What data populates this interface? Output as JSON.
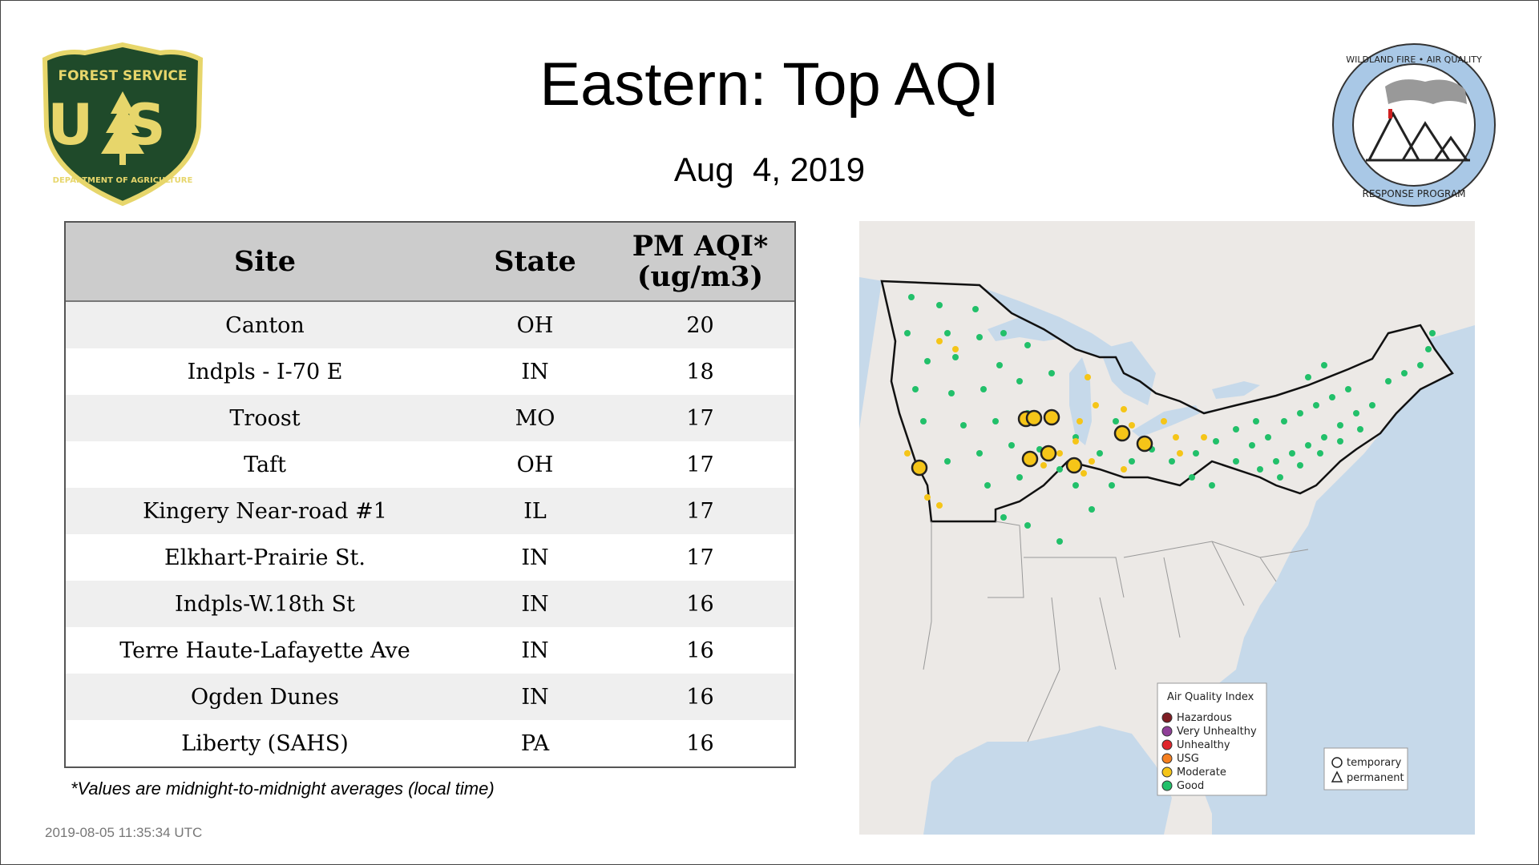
{
  "header": {
    "title": "Eastern: Top AQI",
    "date": "Aug  4, 2019"
  },
  "logos": {
    "forest_service": {
      "top_text": "FOREST SERVICE",
      "letters": "US",
      "bottom_text": "DEPARTMENT OF AGRICULTURE",
      "colors": {
        "green": "#1f4a2a",
        "gold": "#e7d66b"
      }
    },
    "wildland_fire": {
      "top_text": "WILDLAND FIRE • AIR QUALITY",
      "bottom_text": "RESPONSE PROGRAM",
      "colors": {
        "ring": "#a9c8e6"
      }
    }
  },
  "table": {
    "headers": {
      "site": "Site",
      "state": "State",
      "aqi_line1": "PM AQI*",
      "aqi_line2": "(ug/m3)"
    },
    "rows": [
      {
        "site": "Canton",
        "state": "OH",
        "aqi": "20"
      },
      {
        "site": "Indpls - I-70 E",
        "state": "IN",
        "aqi": "18"
      },
      {
        "site": "Troost",
        "state": "MO",
        "aqi": "17"
      },
      {
        "site": "Taft",
        "state": "OH",
        "aqi": "17"
      },
      {
        "site": "Kingery Near-road #1",
        "state": "IL",
        "aqi": "17"
      },
      {
        "site": "Elkhart-Prairie St.",
        "state": "IN",
        "aqi": "17"
      },
      {
        "site": "Indpls-W.18th St",
        "state": "IN",
        "aqi": "16"
      },
      {
        "site": "Terre Haute-Lafayette Ave",
        "state": "IN",
        "aqi": "16"
      },
      {
        "site": "Ogden Dunes",
        "state": "IN",
        "aqi": "16"
      },
      {
        "site": "Liberty (SAHS)",
        "state": "PA",
        "aqi": "16"
      }
    ]
  },
  "footnote": "*Values are midnight-to-midnight averages (local time)",
  "timestamp": "2019-08-05 11:35:34 UTC",
  "map": {
    "colors": {
      "water": "#c6d9ea",
      "land": "#ece9e6",
      "good": "#22c06a",
      "moderate": "#f5c518"
    },
    "legend": {
      "title": "Air Quality Index",
      "categories": [
        {
          "label": "Hazardous",
          "color": "#7e1d23"
        },
        {
          "label": "Very Unhealthy",
          "color": "#8f3f97"
        },
        {
          "label": "Unhealthy",
          "color": "#e0262c"
        },
        {
          "label": "USG",
          "color": "#f57f20"
        },
        {
          "label": "Moderate",
          "color": "#f5c518"
        },
        {
          "label": "Good",
          "color": "#22c06a"
        }
      ],
      "types": [
        {
          "label": "temporary",
          "shape": "circle"
        },
        {
          "label": "permanent",
          "shape": "triangle"
        }
      ]
    }
  }
}
